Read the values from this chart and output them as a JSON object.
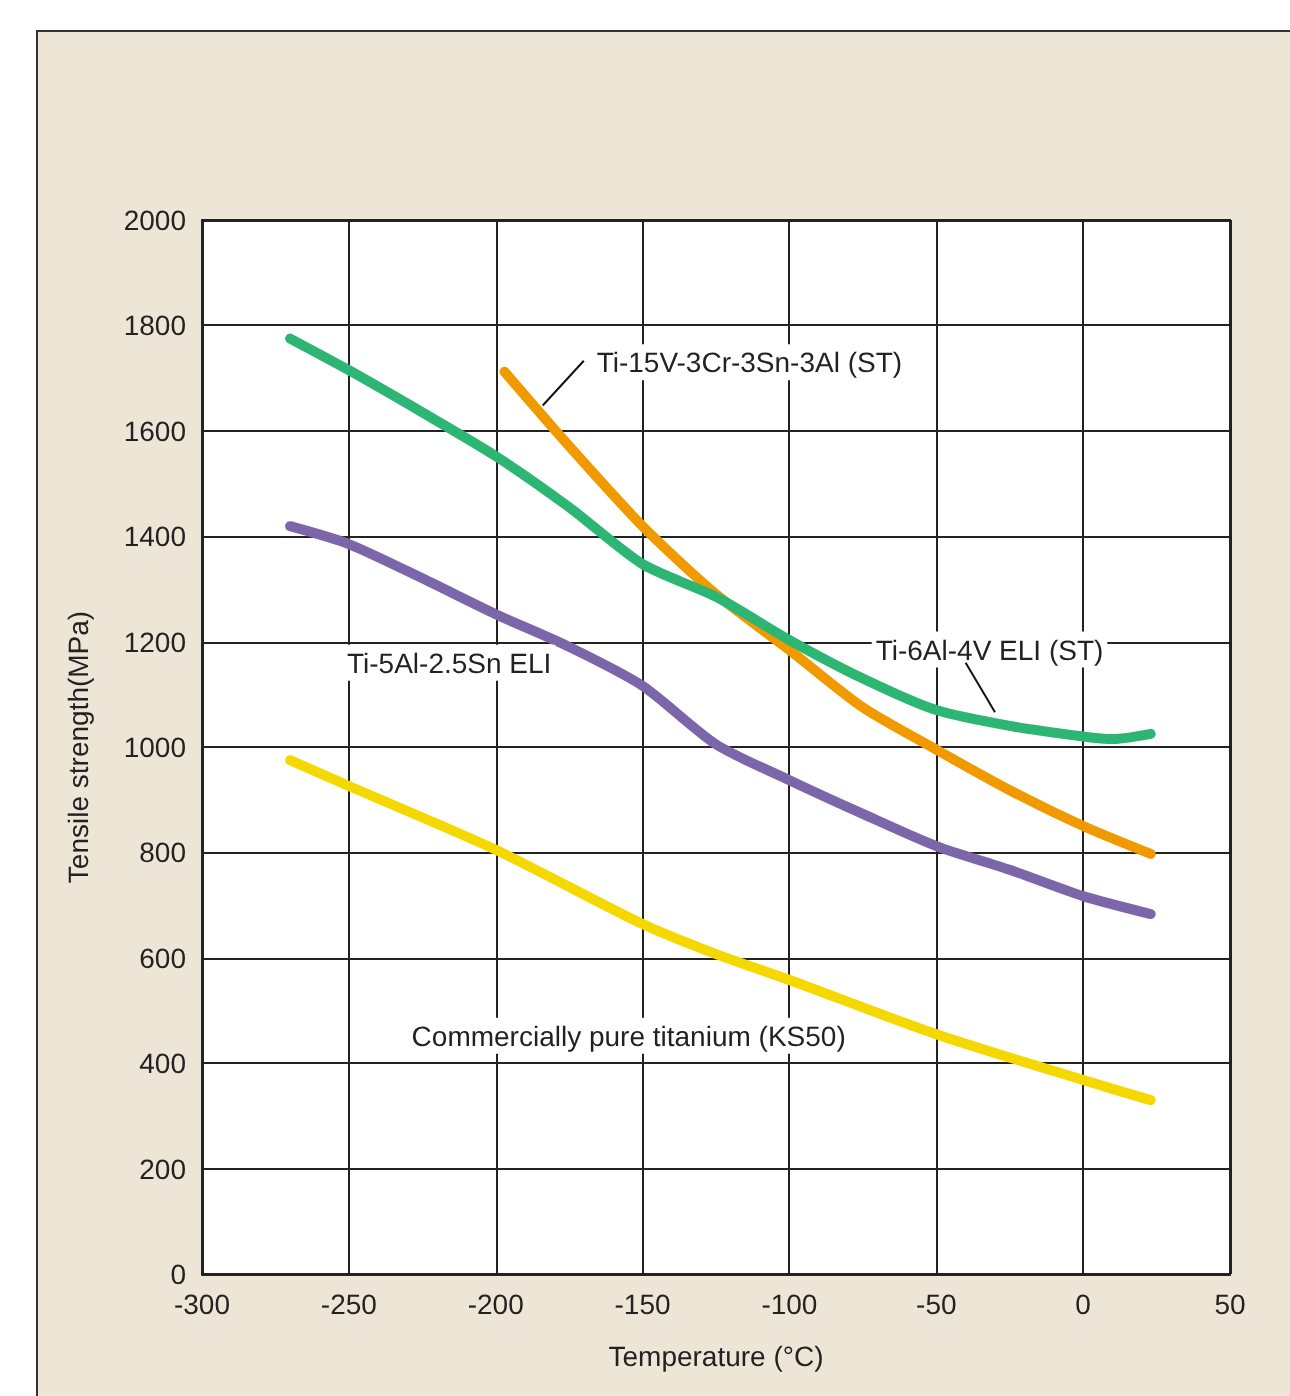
{
  "chart_data": {
    "type": "line",
    "xlabel": "Temperature (°C)",
    "ylabel": "Tensile strength(MPa)",
    "xlim": [
      -300,
      50
    ],
    "xticks": [
      -300,
      -250,
      -200,
      -150,
      -100,
      -50,
      0,
      50
    ],
    "ylim": [
      0,
      2000
    ],
    "yticks": [
      0,
      200,
      400,
      600,
      800,
      1000,
      1200,
      1400,
      1600,
      1800,
      2000
    ],
    "grid": true,
    "marker": "none",
    "line_style": "solid",
    "series": [
      {
        "name": "Ti-15V-3Cr-3Sn-3Al (ST)",
        "color": "#f09a00",
        "x": [
          -197,
          -175,
          -150,
          -125,
          -100,
          -75,
          -50,
          -25,
          0,
          23
        ],
        "values": [
          1712,
          1571,
          1419,
          1290,
          1184,
          1075,
          995,
          918,
          850,
          797
        ]
      },
      {
        "name": "Ti-6Al-4V ELI (ST)",
        "color": "#2db573",
        "x": [
          -270,
          -250,
          -225,
          -200,
          -175,
          -150,
          -125,
          -100,
          -75,
          -50,
          -25,
          0,
          10,
          23
        ],
        "values": [
          1775,
          1715,
          1635,
          1552,
          1455,
          1347,
          1285,
          1203,
          1130,
          1070,
          1040,
          1020,
          1015,
          1025
        ]
      },
      {
        "name": "Ti-5Al-2.5Sn ELI",
        "color": "#7b66aa",
        "x": [
          -270,
          -250,
          -225,
          -200,
          -175,
          -150,
          -125,
          -100,
          -75,
          -50,
          -25,
          0,
          23
        ],
        "values": [
          1419,
          1385,
          1320,
          1252,
          1190,
          1116,
          1005,
          937,
          873,
          812,
          767,
          717,
          683
        ]
      },
      {
        "name": "Commercially pure titanium (KS50)",
        "color": "#f5d800",
        "x": [
          -270,
          -250,
          -200,
          -150,
          -125,
          -100,
          -50,
          0,
          23
        ],
        "values": [
          975,
          926,
          805,
          664,
          607,
          558,
          455,
          368,
          330
        ]
      }
    ]
  }
}
